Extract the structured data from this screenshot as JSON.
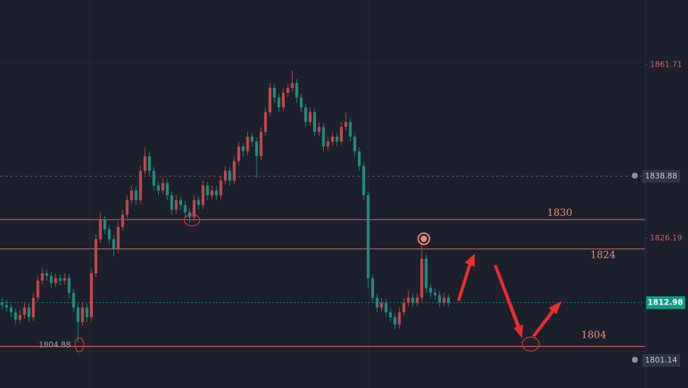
{
  "chart_data": {
    "type": "candlestick",
    "ylim": [
      1795.5,
      1875
    ],
    "yticks": [
      1861.71,
      1826.19
    ],
    "alerts": [
      1838.88,
      1801.14
    ],
    "current_price": 1812.98,
    "levels": [
      1830,
      1824,
      1804
    ],
    "low_marker": 1804.88,
    "up_color": "#c0474c",
    "down_color": "#1e8c7e",
    "level_color": "#d9605f",
    "candles": [
      [
        1813,
        1814,
        1811.5,
        1812.5
      ],
      [
        1812.5,
        1813.5,
        1811,
        1812
      ],
      [
        1812,
        1812.8,
        1810,
        1811
      ],
      [
        1811,
        1811.8,
        1808.5,
        1809.5
      ],
      [
        1809.5,
        1811.5,
        1808.7,
        1810.5
      ],
      [
        1810.5,
        1813,
        1809.7,
        1812
      ],
      [
        1812,
        1812.8,
        1809,
        1810
      ],
      [
        1810,
        1815,
        1809.2,
        1814
      ],
      [
        1814,
        1818.5,
        1813.2,
        1817.5
      ],
      [
        1817.5,
        1820,
        1816.7,
        1819
      ],
      [
        1819,
        1819.8,
        1817.5,
        1818.5
      ],
      [
        1818.5,
        1819.3,
        1816,
        1817
      ],
      [
        1817,
        1819,
        1816.2,
        1818
      ],
      [
        1818,
        1818.8,
        1816.5,
        1817.5
      ],
      [
        1817.5,
        1819,
        1816.7,
        1818
      ],
      [
        1818,
        1818.8,
        1814,
        1815
      ],
      [
        1815,
        1815.8,
        1811,
        1812
      ],
      [
        1812,
        1812.8,
        1804.9,
        1809
      ],
      [
        1809,
        1813,
        1808.2,
        1812
      ],
      [
        1812,
        1812.8,
        1809,
        1810
      ],
      [
        1810,
        1820,
        1809.2,
        1819
      ],
      [
        1819,
        1827,
        1818.2,
        1826
      ],
      [
        1826,
        1831.5,
        1825.2,
        1830
      ],
      [
        1830,
        1830.8,
        1827,
        1828
      ],
      [
        1828,
        1828.8,
        1825,
        1826
      ],
      [
        1826,
        1826.8,
        1822.5,
        1824
      ],
      [
        1824,
        1829.5,
        1823.2,
        1828.5
      ],
      [
        1828.5,
        1832,
        1827.7,
        1831
      ],
      [
        1831,
        1835,
        1830.2,
        1834
      ],
      [
        1834,
        1837,
        1833.2,
        1836
      ],
      [
        1836,
        1836.8,
        1833,
        1834
      ],
      [
        1834,
        1841,
        1833.2,
        1840
      ],
      [
        1840,
        1844.8,
        1839.2,
        1843
      ],
      [
        1843,
        1843.8,
        1839,
        1840
      ],
      [
        1840,
        1840.8,
        1836,
        1837
      ],
      [
        1837,
        1837.8,
        1835,
        1836
      ],
      [
        1836,
        1838.5,
        1835.2,
        1837.5
      ],
      [
        1837.5,
        1838.3,
        1834,
        1835
      ],
      [
        1835,
        1835.8,
        1831,
        1832
      ],
      [
        1832,
        1835,
        1831.2,
        1834
      ],
      [
        1834,
        1834.8,
        1832,
        1833
      ],
      [
        1833,
        1833.8,
        1830.5,
        1831.5
      ],
      [
        1831.5,
        1832.3,
        1829.3,
        1830.5
      ],
      [
        1830.5,
        1835,
        1829.7,
        1834
      ],
      [
        1834,
        1834.8,
        1832,
        1833
      ],
      [
        1833,
        1838,
        1832.2,
        1837
      ],
      [
        1837,
        1837.8,
        1834,
        1835
      ],
      [
        1835,
        1837,
        1834.2,
        1836
      ],
      [
        1836,
        1836.8,
        1834,
        1835
      ],
      [
        1835,
        1839,
        1834.2,
        1838
      ],
      [
        1838,
        1841,
        1837.2,
        1840
      ],
      [
        1840,
        1840.8,
        1837,
        1838
      ],
      [
        1838,
        1843,
        1837.2,
        1842
      ],
      [
        1842,
        1846,
        1841.2,
        1845
      ],
      [
        1845,
        1845.8,
        1843,
        1844
      ],
      [
        1844,
        1848,
        1843.2,
        1847
      ],
      [
        1847,
        1847.8,
        1845,
        1846
      ],
      [
        1846,
        1846.8,
        1838.5,
        1843
      ],
      [
        1843,
        1849,
        1842.2,
        1848
      ],
      [
        1848,
        1853,
        1847.2,
        1852
      ],
      [
        1852,
        1858,
        1851.2,
        1857
      ],
      [
        1857,
        1857.8,
        1854,
        1855
      ],
      [
        1855,
        1855.8,
        1852,
        1853
      ],
      [
        1853,
        1857,
        1852.2,
        1856
      ],
      [
        1856,
        1858,
        1855.2,
        1857
      ],
      [
        1857,
        1860.5,
        1856.2,
        1858
      ],
      [
        1858,
        1858.8,
        1854,
        1855
      ],
      [
        1855,
        1855.8,
        1852,
        1853
      ],
      [
        1853,
        1853.8,
        1849,
        1850
      ],
      [
        1850,
        1853,
        1849.2,
        1852
      ],
      [
        1852,
        1852.8,
        1847,
        1848
      ],
      [
        1848,
        1850,
        1847.2,
        1849
      ],
      [
        1849,
        1849.8,
        1844,
        1845
      ],
      [
        1845,
        1847,
        1844.2,
        1846
      ],
      [
        1846,
        1848,
        1845.2,
        1847
      ],
      [
        1847,
        1847.8,
        1845,
        1846
      ],
      [
        1846,
        1850,
        1845.2,
        1849
      ],
      [
        1849,
        1852,
        1848.2,
        1850
      ],
      [
        1850,
        1850.8,
        1846,
        1847
      ],
      [
        1847,
        1847.8,
        1843,
        1844
      ],
      [
        1844,
        1844.8,
        1840,
        1841
      ],
      [
        1841,
        1841.8,
        1834,
        1835
      ],
      [
        1835,
        1835.8,
        1816,
        1818
      ],
      [
        1818,
        1818.8,
        1813,
        1814
      ],
      [
        1814,
        1814.8,
        1811,
        1812
      ],
      [
        1812,
        1814,
        1811.2,
        1813
      ],
      [
        1813,
        1813.8,
        1810,
        1811
      ],
      [
        1811,
        1811.8,
        1809,
        1810
      ],
      [
        1810,
        1810.8,
        1807.5,
        1808.5
      ],
      [
        1808.5,
        1812,
        1807.7,
        1811
      ],
      [
        1811,
        1814,
        1810.2,
        1813
      ],
      [
        1813,
        1815.5,
        1812.2,
        1814
      ],
      [
        1814,
        1814.8,
        1812,
        1813
      ],
      [
        1813,
        1815,
        1812.2,
        1814
      ],
      [
        1814,
        1825.5,
        1813.2,
        1822
      ],
      [
        1822,
        1822.8,
        1815,
        1816
      ],
      [
        1816,
        1816.8,
        1814,
        1815
      ],
      [
        1815,
        1815.8,
        1813.5,
        1814.5
      ],
      [
        1814.5,
        1815.3,
        1812,
        1813
      ],
      [
        1813,
        1815,
        1812.2,
        1814
      ],
      [
        1814,
        1814.8,
        1812.2,
        1812.98
      ]
    ]
  }
}
